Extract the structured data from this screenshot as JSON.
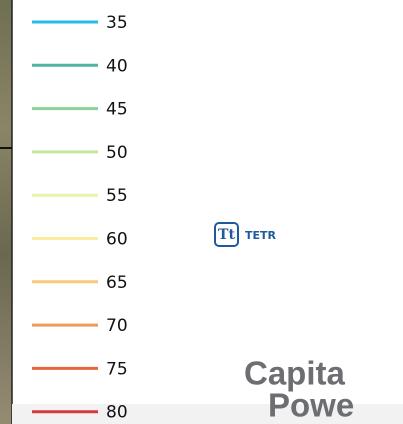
{
  "legend": {
    "items": [
      {
        "label": "35",
        "color": "#29b8e8"
      },
      {
        "label": "40",
        "color": "#4fb3a6"
      },
      {
        "label": "45",
        "color": "#8fd19c"
      },
      {
        "label": "50",
        "color": "#c6e69c"
      },
      {
        "label": "55",
        "color": "#eaf3ab"
      },
      {
        "label": "60",
        "color": "#f8eda2"
      },
      {
        "label": "65",
        "color": "#f9c97c"
      },
      {
        "label": "70",
        "color": "#ef9b56"
      },
      {
        "label": "75",
        "color": "#e8653d"
      },
      {
        "label": "80",
        "color": "#d43a40"
      }
    ]
  },
  "logos": {
    "tetra_tech": "TETR",
    "capital_power": [
      "Capita",
      "Powe"
    ]
  }
}
